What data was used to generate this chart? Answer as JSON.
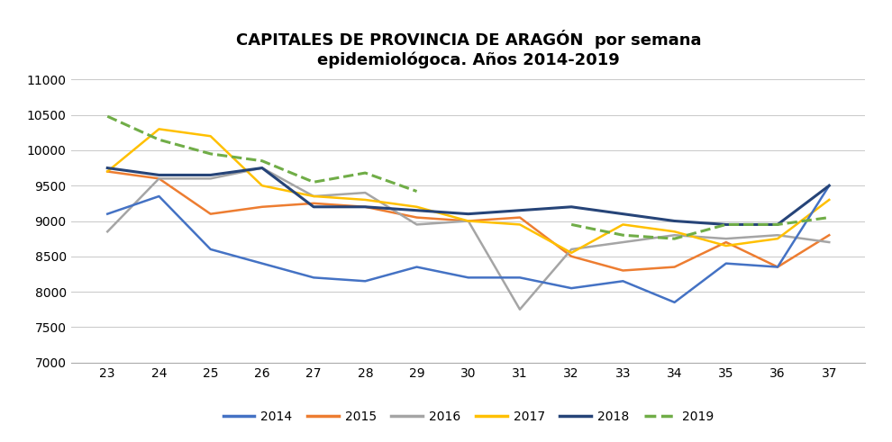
{
  "title": "CAPITALES DE PROVINCIA DE ARAGÓN  por semana\nepidemiológoca. Años 2014-2019",
  "x_weeks": [
    23,
    24,
    25,
    26,
    27,
    28,
    29,
    30,
    31,
    32,
    33,
    34,
    35,
    36,
    37
  ],
  "series_order": [
    "2014",
    "2015",
    "2016",
    "2017",
    "2018",
    "2019"
  ],
  "series": {
    "2014": {
      "values": [
        9100,
        9350,
        8600,
        8400,
        8200,
        8150,
        8350,
        8200,
        8200,
        8050,
        8150,
        7850,
        8400,
        8350,
        9500
      ],
      "color": "#4472C4",
      "linestyle": "-",
      "linewidth": 1.8,
      "zorder": 4
    },
    "2015": {
      "values": [
        9700,
        9600,
        9100,
        9200,
        9250,
        9200,
        9050,
        9000,
        9050,
        8500,
        8300,
        8350,
        8700,
        8350,
        8800
      ],
      "color": "#ED7D31",
      "linestyle": "-",
      "linewidth": 1.8,
      "zorder": 3
    },
    "2016": {
      "values": [
        8850,
        9600,
        9600,
        9750,
        9350,
        9400,
        8950,
        9000,
        7750,
        8600,
        8700,
        8800,
        8750,
        8800,
        8700
      ],
      "color": "#A5A5A5",
      "linestyle": "-",
      "linewidth": 1.8,
      "zorder": 3
    },
    "2017": {
      "values": [
        9700,
        10300,
        10200,
        9500,
        9350,
        9300,
        9200,
        9000,
        8950,
        8550,
        8950,
        8850,
        8650,
        8750,
        9300
      ],
      "color": "#FFC000",
      "linestyle": "-",
      "linewidth": 1.8,
      "zorder": 3
    },
    "2018": {
      "values": [
        9750,
        9650,
        9650,
        9750,
        9200,
        9200,
        9150,
        9100,
        9150,
        9200,
        9100,
        9000,
        8950,
        8950,
        9500
      ],
      "color": "#264478",
      "linestyle": "-",
      "linewidth": 2.2,
      "zorder": 5
    },
    "2019": {
      "values": [
        10480,
        10150,
        9950,
        9850,
        9550,
        9680,
        9420,
        null,
        null,
        8950,
        8800,
        8750,
        8950,
        8950,
        9050
      ],
      "color": "#70AD47",
      "linestyle": "--",
      "linewidth": 2.2,
      "zorder": 6
    }
  },
  "ylim": [
    7000,
    11000
  ],
  "yticks": [
    7000,
    7500,
    8000,
    8500,
    9000,
    9500,
    10000,
    10500,
    11000
  ],
  "xlim": [
    22.3,
    37.7
  ],
  "xticks": [
    23,
    24,
    25,
    26,
    27,
    28,
    29,
    30,
    31,
    32,
    33,
    34,
    35,
    36,
    37
  ],
  "legend_colors": [
    "#4472C4",
    "#ED7D31",
    "#A5A5A5",
    "#FFC000",
    "#264478",
    "#70AD47"
  ],
  "legend_linestyles": [
    "-",
    "-",
    "-",
    "-",
    "-",
    "--"
  ],
  "legend_labels": [
    "2014",
    "2015",
    "2016",
    "2017",
    "2018",
    "2019"
  ],
  "background_color": "#FFFFFF",
  "grid_color": "#C8C8C8",
  "title_fontsize": 13
}
